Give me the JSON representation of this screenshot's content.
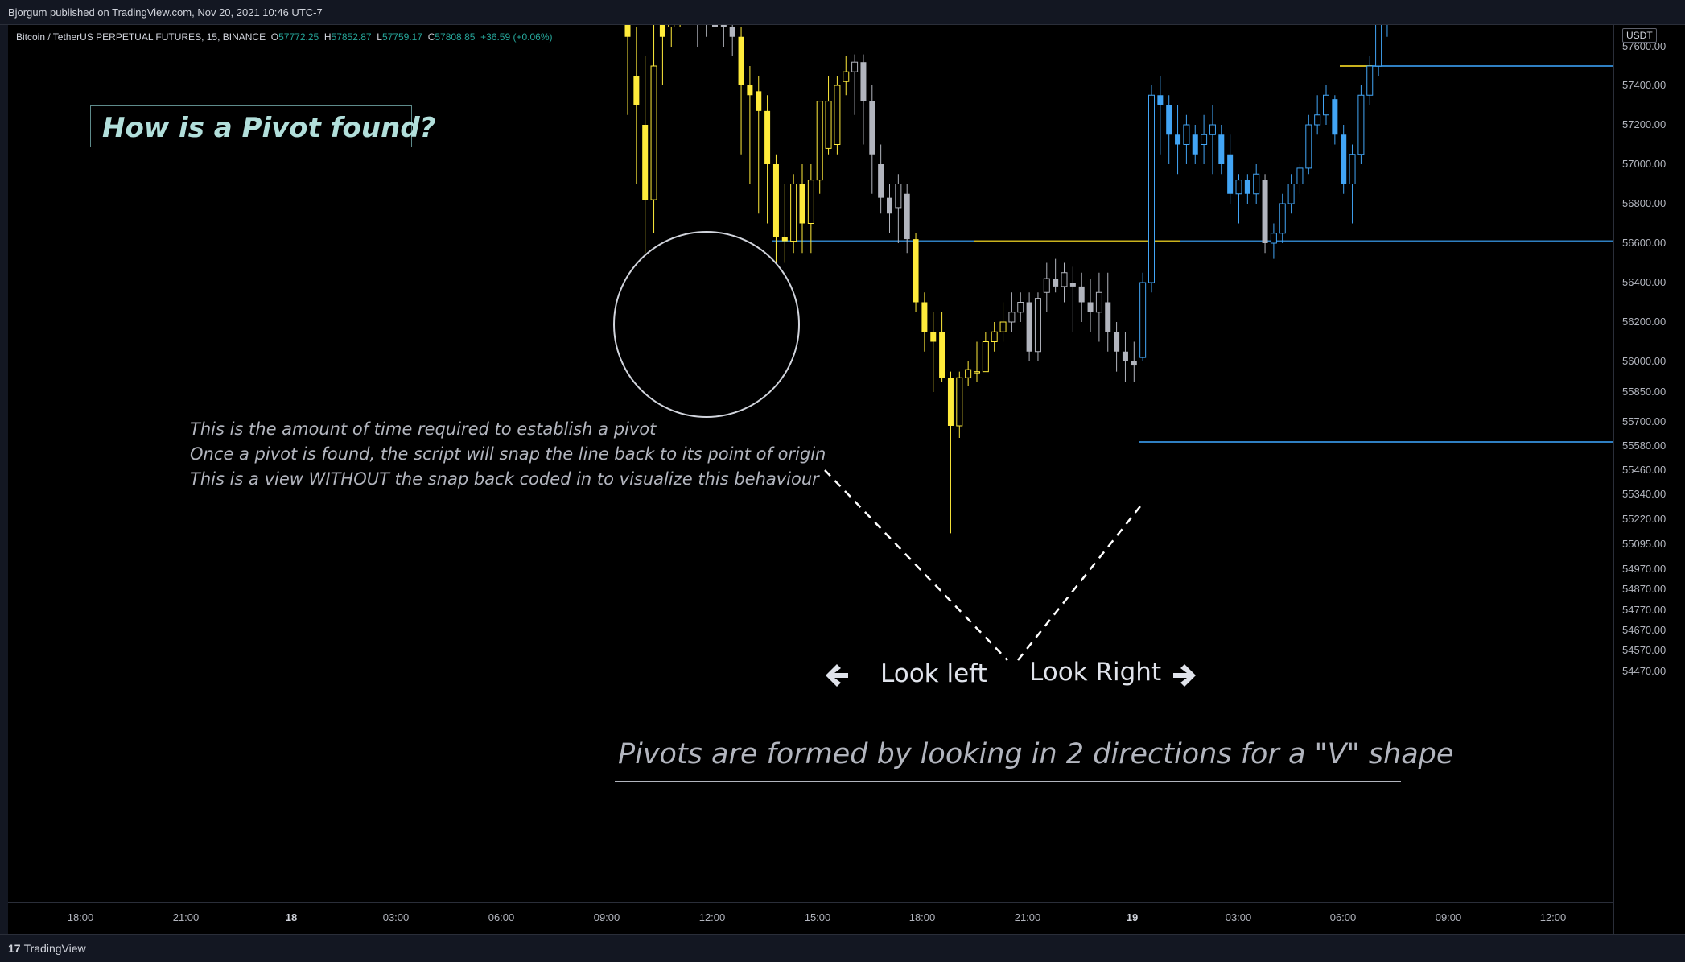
{
  "header": {
    "published": "Bjorgum published on TradingView.com, Nov 20, 2021 10:46 UTC-7"
  },
  "footer": {
    "brand": "TradingView",
    "brand_logo": "17"
  },
  "legend": {
    "symbol": "Bitcoin / TetherUS PERPETUAL FUTURES, 15, BINANCE",
    "o_label": "O",
    "o_value": "57772.25",
    "h_label": "H",
    "h_value": "57852.87",
    "l_label": "L",
    "l_value": "57759.17",
    "c_label": "C",
    "c_value": "57808.85",
    "change": "+36.59 (+0.06%)"
  },
  "annotations": {
    "title": "How is a Pivot found?",
    "note_lines": [
      "This is the amount of time required to establish a pivot",
      "Once a pivot is found, the script will snap the line back to its point of origin",
      "This is a view WITHOUT the snap back coded in to visualize this behaviour"
    ],
    "look_left": "Look left",
    "look_right": "Look Right",
    "subtitle": "Pivots are formed by looking in 2 directions for a \"V\" shape"
  },
  "colors": {
    "bull_yellow": "#ffeb3b",
    "blue": "#42a5f5",
    "gray": "#b2b5be",
    "hline_blue": "#2f7fc1",
    "hline_yellow": "#c9b21e"
  },
  "chart_data": {
    "type": "candlestick",
    "currency_label": "USDT",
    "x_ticks": [
      {
        "label": "18:00",
        "bold": false
      },
      {
        "label": "21:00",
        "bold": false
      },
      {
        "label": "18",
        "bold": true
      },
      {
        "label": "03:00",
        "bold": false
      },
      {
        "label": "06:00",
        "bold": false
      },
      {
        "label": "09:00",
        "bold": false
      },
      {
        "label": "12:00",
        "bold": false
      },
      {
        "label": "15:00",
        "bold": false
      },
      {
        "label": "18:00",
        "bold": false
      },
      {
        "label": "21:00",
        "bold": false
      },
      {
        "label": "19",
        "bold": true
      },
      {
        "label": "03:00",
        "bold": false
      },
      {
        "label": "06:00",
        "bold": false
      },
      {
        "label": "09:00",
        "bold": false
      },
      {
        "label": "12:00",
        "bold": false
      }
    ],
    "y_ticks": [
      "57600.00",
      "57400.00",
      "57200.00",
      "57000.00",
      "56800.00",
      "56600.00",
      "56400.00",
      "56200.00",
      "56000.00",
      "55850.00",
      "55700.00",
      "55580.00",
      "55460.00",
      "55340.00",
      "55220.00",
      "55095.00",
      "54970.00",
      "54870.00",
      "54770.00",
      "54670.00",
      "54570.00",
      "54470.00"
    ],
    "pivot_levels": [
      {
        "price": 57500,
        "color": "blue"
      },
      {
        "price": 56610,
        "color": "blue"
      },
      {
        "price": 56610,
        "color": "yellow"
      },
      {
        "price": 57500,
        "color": "yellow"
      },
      {
        "price": 55600,
        "color": "blue"
      }
    ],
    "candles": [
      {
        "o": 57900,
        "h": 57950,
        "l": 57250,
        "c": 57650,
        "k": "y"
      },
      {
        "o": 57450,
        "h": 57700,
        "l": 56900,
        "c": 57300,
        "k": "y"
      },
      {
        "o": 57200,
        "h": 57550,
        "l": 56550,
        "c": 56820,
        "k": "y"
      },
      {
        "o": 56820,
        "h": 57800,
        "l": 56650,
        "c": 57500,
        "k": "yh"
      },
      {
        "o": 57650,
        "h": 57950,
        "l": 57400,
        "c": 57900,
        "k": "y"
      },
      {
        "o": 57700,
        "h": 57950,
        "l": 57600,
        "c": 57850,
        "k": "yh"
      },
      {
        "o": 57850,
        "h": 57950,
        "l": 57700,
        "c": 57900,
        "k": "yh"
      },
      {
        "o": 57880,
        "h": 57950,
        "l": 57800,
        "c": 57850,
        "k": "w"
      },
      {
        "o": 57820,
        "h": 57950,
        "l": 57600,
        "c": 57780,
        "k": "w"
      },
      {
        "o": 57800,
        "h": 57950,
        "l": 57650,
        "c": 57720,
        "k": "w"
      },
      {
        "o": 57750,
        "h": 57900,
        "l": 57650,
        "c": 57700,
        "k": "w"
      },
      {
        "o": 57720,
        "h": 57850,
        "l": 57600,
        "c": 57700,
        "k": "w"
      },
      {
        "o": 57700,
        "h": 57800,
        "l": 57550,
        "c": 57650,
        "k": "w"
      },
      {
        "o": 57650,
        "h": 57700,
        "l": 57050,
        "c": 57400,
        "k": "y"
      },
      {
        "o": 57400,
        "h": 57500,
        "l": 56900,
        "c": 57350,
        "k": "y"
      },
      {
        "o": 57370,
        "h": 57450,
        "l": 56750,
        "c": 57270,
        "k": "y"
      },
      {
        "o": 57270,
        "h": 57350,
        "l": 56700,
        "c": 57000,
        "k": "y"
      },
      {
        "o": 57000,
        "h": 57050,
        "l": 56500,
        "c": 56630,
        "k": "y"
      },
      {
        "o": 56630,
        "h": 56900,
        "l": 56500,
        "c": 56610,
        "k": "y"
      },
      {
        "o": 56610,
        "h": 56950,
        "l": 56550,
        "c": 56900,
        "k": "yh"
      },
      {
        "o": 56900,
        "h": 57000,
        "l": 56550,
        "c": 56700,
        "k": "y"
      },
      {
        "o": 56700,
        "h": 57000,
        "l": 56550,
        "c": 56920,
        "k": "yh"
      },
      {
        "o": 56920,
        "h": 57300,
        "l": 56850,
        "c": 57320,
        "k": "yh"
      },
      {
        "o": 57320,
        "h": 57450,
        "l": 57050,
        "c": 57080,
        "k": "yh"
      },
      {
        "o": 57100,
        "h": 57450,
        "l": 57050,
        "c": 57400,
        "k": "yh"
      },
      {
        "o": 57420,
        "h": 57550,
        "l": 57350,
        "c": 57470,
        "k": "yh"
      },
      {
        "o": 57470,
        "h": 57560,
        "l": 57250,
        "c": 57520,
        "k": "wh"
      },
      {
        "o": 57520,
        "h": 57560,
        "l": 57100,
        "c": 57320,
        "k": "w"
      },
      {
        "o": 57320,
        "h": 57400,
        "l": 56850,
        "c": 57050,
        "k": "w"
      },
      {
        "o": 57000,
        "h": 57100,
        "l": 56750,
        "c": 56830,
        "k": "w"
      },
      {
        "o": 56830,
        "h": 56900,
        "l": 56650,
        "c": 56750,
        "k": "w"
      },
      {
        "o": 56780,
        "h": 56950,
        "l": 56600,
        "c": 56900,
        "k": "wh"
      },
      {
        "o": 56850,
        "h": 56900,
        "l": 56550,
        "c": 56620,
        "k": "w"
      },
      {
        "o": 56620,
        "h": 56650,
        "l": 56250,
        "c": 56300,
        "k": "y"
      },
      {
        "o": 56300,
        "h": 56350,
        "l": 56050,
        "c": 56150,
        "k": "y"
      },
      {
        "o": 56150,
        "h": 56250,
        "l": 55850,
        "c": 56100,
        "k": "y"
      },
      {
        "o": 56150,
        "h": 56250,
        "l": 55900,
        "c": 55920,
        "k": "y"
      },
      {
        "o": 55920,
        "h": 55950,
        "l": 55150,
        "c": 55680,
        "k": "y"
      },
      {
        "o": 55680,
        "h": 55950,
        "l": 55620,
        "c": 55920,
        "k": "yh"
      },
      {
        "o": 55920,
        "h": 56000,
        "l": 55880,
        "c": 55960,
        "k": "yh"
      },
      {
        "o": 55950,
        "h": 56100,
        "l": 55900,
        "c": 55950,
        "k": "yh"
      },
      {
        "o": 55950,
        "h": 56150,
        "l": 55950,
        "c": 56100,
        "k": "yh"
      },
      {
        "o": 56100,
        "h": 56200,
        "l": 56050,
        "c": 56150,
        "k": "yh"
      },
      {
        "o": 56150,
        "h": 56300,
        "l": 56100,
        "c": 56200,
        "k": "yh"
      },
      {
        "o": 56200,
        "h": 56350,
        "l": 56150,
        "c": 56250,
        "k": "wh"
      },
      {
        "o": 56250,
        "h": 56350,
        "l": 56200,
        "c": 56300,
        "k": "wh"
      },
      {
        "o": 56300,
        "h": 56350,
        "l": 56000,
        "c": 56050,
        "k": "w"
      },
      {
        "o": 56050,
        "h": 56350,
        "l": 56000,
        "c": 56320,
        "k": "wh"
      },
      {
        "o": 56350,
        "h": 56500,
        "l": 56250,
        "c": 56420,
        "k": "wh"
      },
      {
        "o": 56420,
        "h": 56520,
        "l": 56350,
        "c": 56380,
        "k": "w"
      },
      {
        "o": 56380,
        "h": 56500,
        "l": 56300,
        "c": 56450,
        "k": "wh"
      },
      {
        "o": 56400,
        "h": 56480,
        "l": 56150,
        "c": 56380,
        "k": "w"
      },
      {
        "o": 56380,
        "h": 56450,
        "l": 56200,
        "c": 56300,
        "k": "w"
      },
      {
        "o": 56300,
        "h": 56420,
        "l": 56150,
        "c": 56250,
        "k": "w"
      },
      {
        "o": 56250,
        "h": 56450,
        "l": 56100,
        "c": 56350,
        "k": "wh"
      },
      {
        "o": 56300,
        "h": 56450,
        "l": 56050,
        "c": 56150,
        "k": "w"
      },
      {
        "o": 56150,
        "h": 56200,
        "l": 55950,
        "c": 56050,
        "k": "w"
      },
      {
        "o": 56050,
        "h": 56150,
        "l": 55900,
        "c": 56000,
        "k": "w"
      },
      {
        "o": 56000,
        "h": 56100,
        "l": 55900,
        "c": 55980,
        "k": "w"
      },
      {
        "o": 56020,
        "h": 56450,
        "l": 56000,
        "c": 56400,
        "k": "bh"
      },
      {
        "o": 56400,
        "h": 57400,
        "l": 56350,
        "c": 57350,
        "k": "bh"
      },
      {
        "o": 57350,
        "h": 57450,
        "l": 57050,
        "c": 57300,
        "k": "b"
      },
      {
        "o": 57300,
        "h": 57350,
        "l": 57000,
        "c": 57150,
        "k": "b"
      },
      {
        "o": 57150,
        "h": 57300,
        "l": 56950,
        "c": 57100,
        "k": "b"
      },
      {
        "o": 57100,
        "h": 57250,
        "l": 57000,
        "c": 57200,
        "k": "bh"
      },
      {
        "o": 57150,
        "h": 57200,
        "l": 57000,
        "c": 57050,
        "k": "b"
      },
      {
        "o": 57100,
        "h": 57250,
        "l": 57000,
        "c": 57150,
        "k": "bh"
      },
      {
        "o": 57150,
        "h": 57300,
        "l": 56950,
        "c": 57200,
        "k": "bh"
      },
      {
        "o": 57150,
        "h": 57200,
        "l": 56950,
        "c": 57000,
        "k": "b"
      },
      {
        "o": 57050,
        "h": 57150,
        "l": 56800,
        "c": 56850,
        "k": "b"
      },
      {
        "o": 56850,
        "h": 56950,
        "l": 56700,
        "c": 56920,
        "k": "bh"
      },
      {
        "o": 56920,
        "h": 56950,
        "l": 56800,
        "c": 56850,
        "k": "b"
      },
      {
        "o": 56850,
        "h": 57000,
        "l": 56800,
        "c": 56950,
        "k": "bh"
      },
      {
        "o": 56920,
        "h": 56950,
        "l": 56550,
        "c": 56600,
        "k": "w"
      },
      {
        "o": 56600,
        "h": 56700,
        "l": 56520,
        "c": 56650,
        "k": "bh"
      },
      {
        "o": 56650,
        "h": 56850,
        "l": 56600,
        "c": 56800,
        "k": "bh"
      },
      {
        "o": 56800,
        "h": 56950,
        "l": 56750,
        "c": 56900,
        "k": "bh"
      },
      {
        "o": 56900,
        "h": 57000,
        "l": 56850,
        "c": 56980,
        "k": "bh"
      },
      {
        "o": 56980,
        "h": 57250,
        "l": 56950,
        "c": 57200,
        "k": "bh"
      },
      {
        "o": 57200,
        "h": 57350,
        "l": 57150,
        "c": 57250,
        "k": "bh"
      },
      {
        "o": 57250,
        "h": 57400,
        "l": 57200,
        "c": 57350,
        "k": "bh"
      },
      {
        "o": 57330,
        "h": 57350,
        "l": 57100,
        "c": 57150,
        "k": "b"
      },
      {
        "o": 57150,
        "h": 57200,
        "l": 56850,
        "c": 56900,
        "k": "b"
      },
      {
        "o": 56900,
        "h": 57100,
        "l": 56700,
        "c": 57050,
        "k": "bh"
      },
      {
        "o": 57050,
        "h": 57400,
        "l": 57000,
        "c": 57350,
        "k": "bh"
      },
      {
        "o": 57350,
        "h": 57550,
        "l": 57300,
        "c": 57500,
        "k": "bh"
      },
      {
        "o": 57500,
        "h": 57800,
        "l": 57450,
        "c": 57750,
        "k": "bh"
      },
      {
        "o": 57750,
        "h": 57900,
        "l": 57650,
        "c": 57850,
        "k": "bh"
      },
      {
        "o": 57850,
        "h": 57950,
        "l": 57750,
        "c": 57900,
        "k": "bh"
      }
    ]
  }
}
